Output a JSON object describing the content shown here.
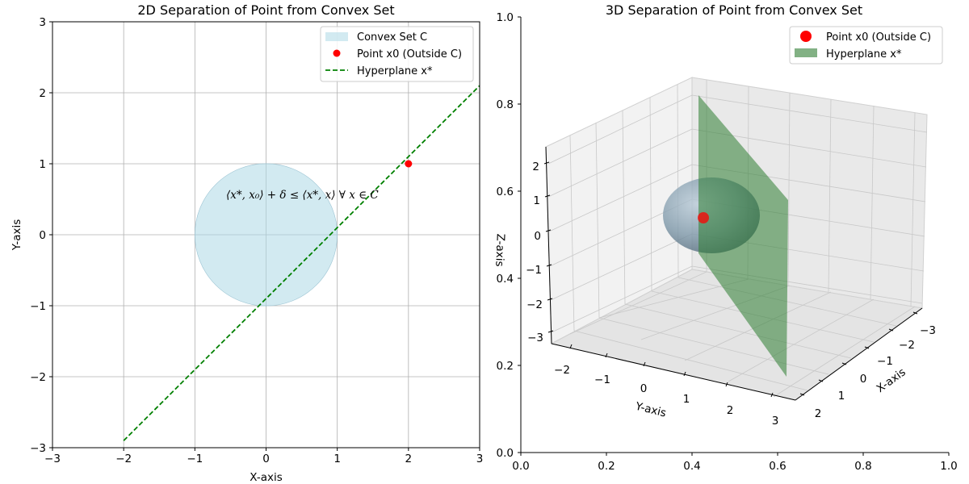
{
  "chart_data": [
    {
      "type": "scatter",
      "title": "2D Separation of Point from Convex Set",
      "xlabel": "X-axis",
      "ylabel": "Y-axis",
      "xlim": [
        -3,
        3
      ],
      "ylim": [
        -3,
        3
      ],
      "xticks": [
        "−3",
        "−2",
        "−1",
        "0",
        "1",
        "2",
        "3"
      ],
      "yticks": [
        "−3",
        "−2",
        "−1",
        "0",
        "1",
        "2",
        "3"
      ],
      "xtick_values": [
        -3,
        -2,
        -1,
        0,
        1,
        2,
        3
      ],
      "ytick_values": [
        -3,
        -2,
        -1,
        0,
        1,
        2,
        3
      ],
      "grid": true,
      "legend_position": "top-right",
      "convex_set": {
        "name": "Convex Set C",
        "center": [
          0,
          0
        ],
        "radius": 1,
        "color": "#add8e6"
      },
      "point": {
        "name": "Point x0 (Outside C)",
        "x": 2,
        "y": 1,
        "color": "#ff0000"
      },
      "hyperplane": {
        "name": "Hyperplane x*",
        "x": [
          -2,
          3
        ],
        "y": [
          -2.9,
          2.1
        ],
        "color": "#008000",
        "style": "dashed"
      },
      "annotation": "⟨x*, x₀⟩ + δ ≤ ⟨x*, x⟩ ∀ x ∈ C"
    },
    {
      "type": "3d-surface",
      "title": "3D Separation of Point from Convex Set",
      "xlabel": "X-axis",
      "ylabel": "Y-axis",
      "zlabel": "Z-axis",
      "x_ticks": [
        "−3",
        "−2",
        "−1",
        "0",
        "1",
        "2"
      ],
      "y_ticks": [
        "−2",
        "−1",
        "0",
        "1",
        "2",
        "3"
      ],
      "z_ticks": [
        "−3",
        "−2",
        "−1",
        "0",
        "1",
        "2"
      ],
      "outer_xticks": [
        "0.0",
        "0.2",
        "0.4",
        "0.6",
        "0.8",
        "1.0"
      ],
      "outer_yticks": [
        "0.0",
        "0.2",
        "0.4",
        "0.6",
        "0.8",
        "1.0"
      ],
      "outer_xtick_values": [
        0,
        0.2,
        0.4,
        0.6,
        0.8,
        1.0
      ],
      "outer_ytick_values": [
        0,
        0.2,
        0.4,
        0.6,
        0.8,
        1.0
      ],
      "legend_position": "top-right",
      "point": {
        "name": "Point x0 (Outside C)",
        "color": "#ff0000"
      },
      "hyperplane": {
        "name": "Hyperplane x*",
        "color": "#2e7d32"
      },
      "sphere_color": "#9fb4c4"
    }
  ]
}
